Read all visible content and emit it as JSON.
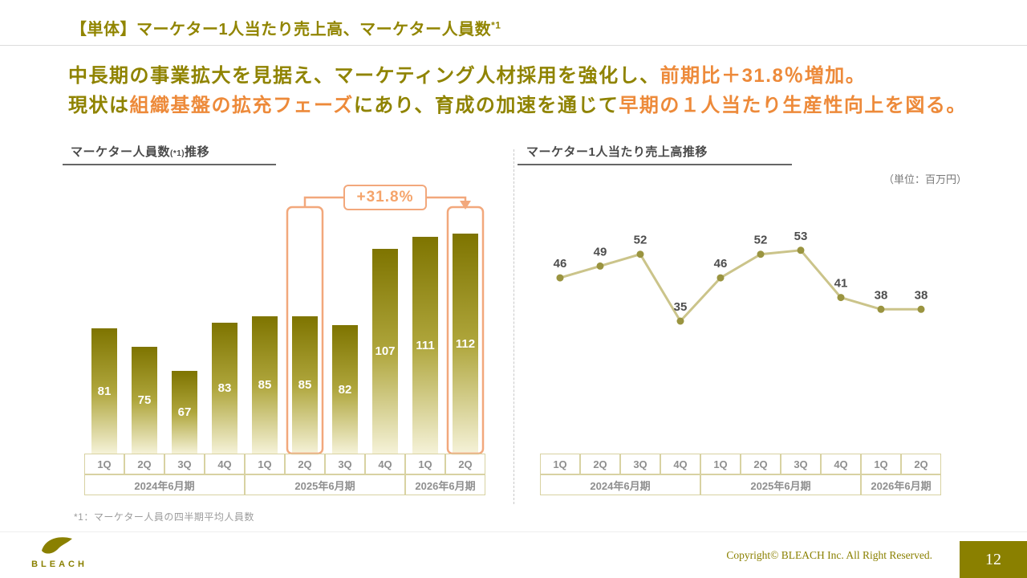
{
  "page": {
    "title": "【単体】マーケター1人当たり売上高、マーケター人員数",
    "title_footnote_ref": "*1",
    "footnote": "*1：マーケター人員の四半期平均人員数",
    "page_number": "12",
    "copyright": "Copyright© BLEACH Inc. All Right Reserved.",
    "brand": "BLEACH"
  },
  "message": {
    "line1": [
      {
        "text": "中長期の事業拡大を見据え、マーケティング人材採用を強化し、",
        "color": "olive"
      },
      {
        "text": "前期比＋31.8％増加。",
        "color": "orange"
      }
    ],
    "line2": [
      {
        "text": "現状は",
        "color": "olive"
      },
      {
        "text": "組織基盤の拡充フェーズ",
        "color": "orange"
      },
      {
        "text": "にあり、育成の加速を通じて",
        "color": "olive"
      },
      {
        "text": "早期の１人当たり生産性向上を図る。",
        "color": "orange"
      }
    ]
  },
  "colors": {
    "olive": "#8F8300",
    "orange": "#ED8A3A",
    "orange_light": "#F2A87C",
    "bar_top": "#7E7400",
    "bar_bottom": "#F5F2D8",
    "line": "#CBC48A",
    "dot": "#9A9440",
    "axis_border": "#D8D2A2",
    "axis_text": "#8F8F8F",
    "footer_block": "#8A8000"
  },
  "chart_data": [
    {
      "type": "bar",
      "title": "マーケター人員数(*1)推移",
      "title_main": "マーケター人員数",
      "title_sup": "(*1)",
      "title_tail": "推移",
      "categories": [
        "1Q",
        "2Q",
        "3Q",
        "4Q",
        "1Q",
        "2Q",
        "3Q",
        "4Q",
        "1Q",
        "2Q"
      ],
      "groups": [
        {
          "label": "2024年6月期",
          "span": 4
        },
        {
          "label": "2025年6月期",
          "span": 4
        },
        {
          "label": "2026年6月期",
          "span": 2
        }
      ],
      "values": [
        81,
        75,
        67,
        83,
        85,
        85,
        82,
        107,
        111,
        112
      ],
      "ylim": [
        40,
        120
      ],
      "annotation": {
        "label": "+31.8%",
        "from_index": 5,
        "to_index": 9
      }
    },
    {
      "type": "line",
      "title": "マーケター1人当たり売上高推移",
      "unit_note": "（単位：百万円）",
      "categories": [
        "1Q",
        "2Q",
        "3Q",
        "4Q",
        "1Q",
        "2Q",
        "3Q",
        "4Q",
        "1Q",
        "2Q"
      ],
      "groups": [
        {
          "label": "2024年6月期",
          "span": 4
        },
        {
          "label": "2025年6月期",
          "span": 4
        },
        {
          "label": "2026年6月期",
          "span": 2
        }
      ],
      "values": [
        46,
        49,
        52,
        35,
        46,
        52,
        53,
        41,
        38,
        38
      ],
      "ylim": [
        30,
        60
      ]
    }
  ]
}
